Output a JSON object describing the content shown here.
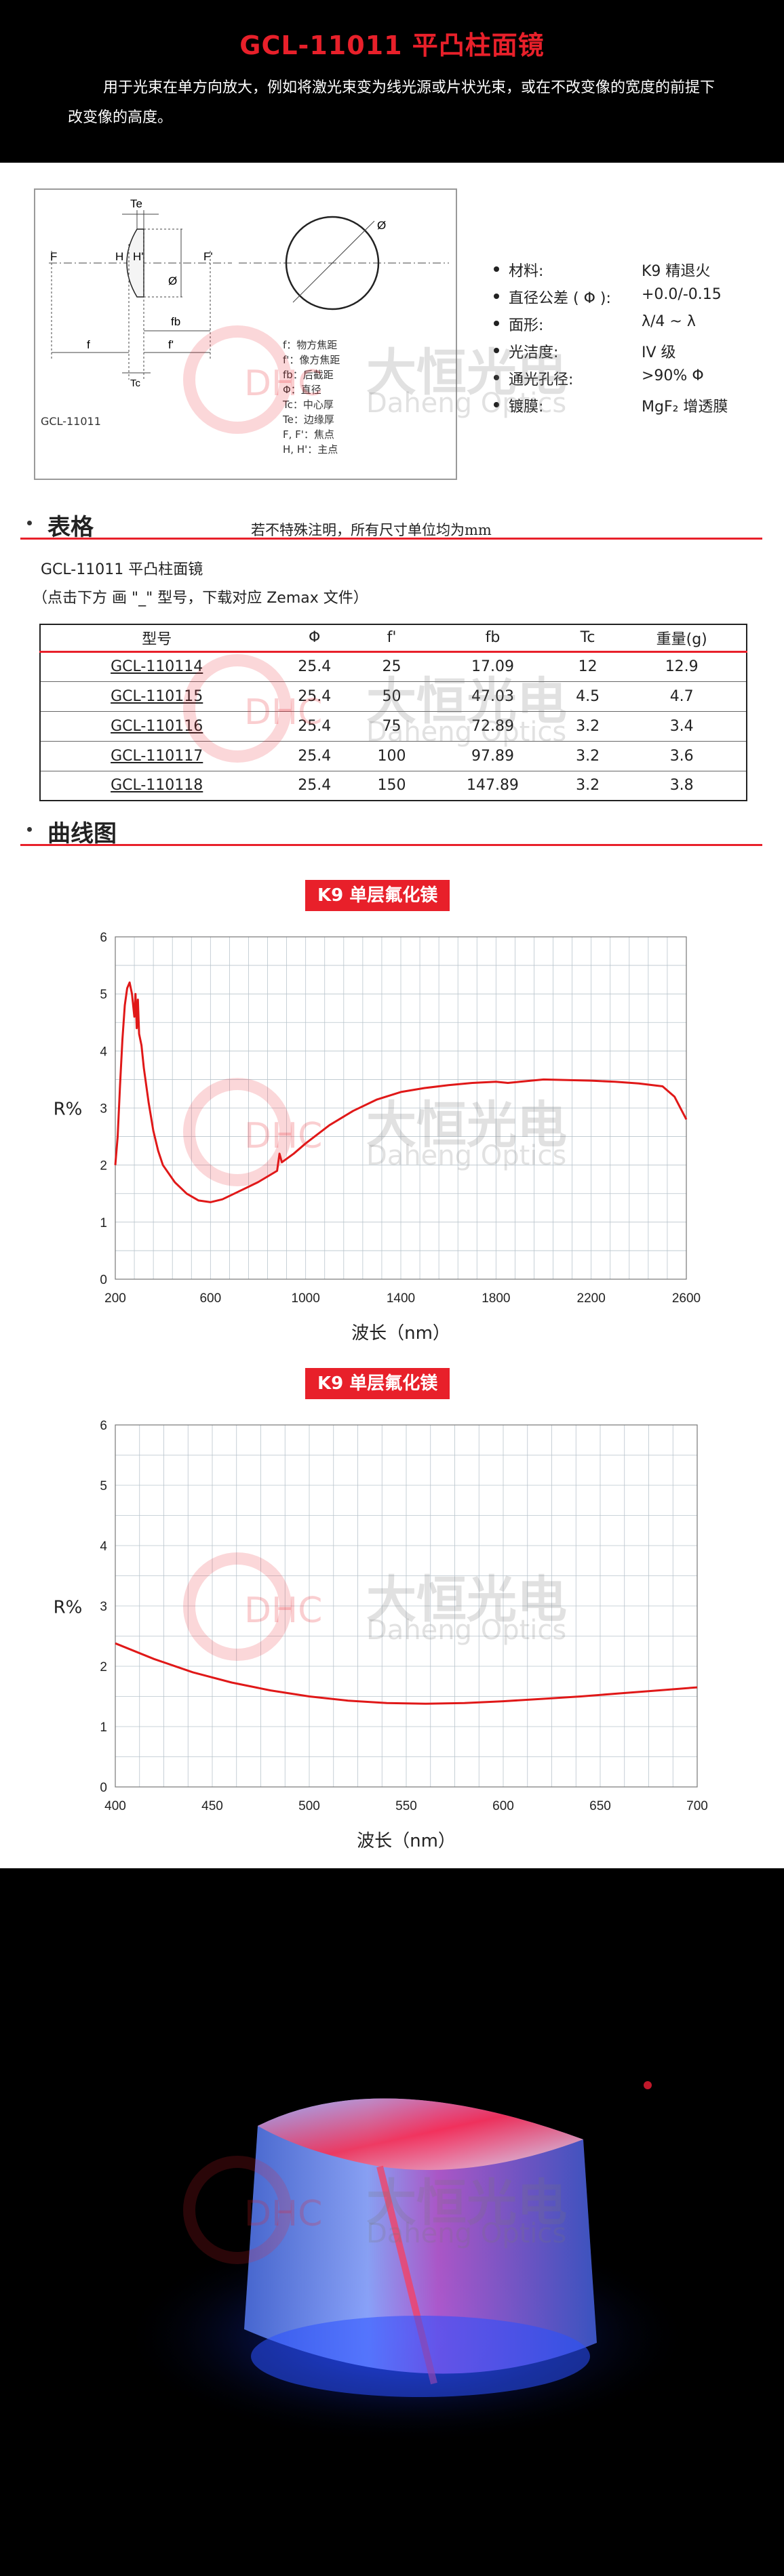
{
  "header": {
    "title": "GCL-11011 平凸柱面镜",
    "description": "用于光束在单方向放大，例如将激光束变为线光源或片状光束，或在不改变像的宽度的前提下改变像的高度。"
  },
  "diagram": {
    "caption": "GCL-11011",
    "labels": {
      "te": "Te",
      "f_left": "F",
      "h": "H",
      "h_prime": "H'",
      "f_right": "F'",
      "phi_side": "Ø",
      "phi_circle": "Ø",
      "f": "f",
      "fb": "fb",
      "f_prime": "f'",
      "tc": "Tc"
    },
    "legend": [
      "f：物方焦距",
      "f'：像方焦距",
      "fb：后截距",
      "Φ：直径",
      "Tc：中心厚",
      "Te：边缘厚",
      "F, F'：焦点",
      "H, H'：主点"
    ]
  },
  "specs": [
    {
      "key": "材料:",
      "value": "K9 精退火"
    },
    {
      "key": "直径公差 ( Φ ):",
      "value": "+0.0/-0.15"
    },
    {
      "key": "面形:",
      "value": "λ/4 ~ λ"
    },
    {
      "key": "光洁度:",
      "value": "IV 级"
    },
    {
      "key": "通光孔径:",
      "value": ">90% Φ"
    },
    {
      "key": "镀膜:",
      "value": "MgF₂ 增透膜"
    }
  ],
  "table_section": {
    "label": "表格",
    "note": "若不特殊注明，所有尺寸单位均为mm",
    "title": "GCL-11011 平凸柱面镜",
    "subtitle": "（点击下方  画 \"_\" 型号，下载对应 Zemax 文件）",
    "columns": [
      "型号",
      "Φ",
      "f'",
      "fb",
      "Tc",
      "重量(g)"
    ],
    "rows": [
      [
        "GCL-110114",
        "25.4",
        "25",
        "17.09",
        "12",
        "12.9"
      ],
      [
        "GCL-110115",
        "25.4",
        "50",
        "47.03",
        "4.5",
        "4.7"
      ],
      [
        "GCL-110116",
        "25.4",
        "75",
        "72.89",
        "3.2",
        "3.4"
      ],
      [
        "GCL-110117",
        "25.4",
        "100",
        "97.89",
        "3.2",
        "3.6"
      ],
      [
        "GCL-110118",
        "25.4",
        "150",
        "147.89",
        "3.2",
        "3.8"
      ]
    ]
  },
  "curve_section": {
    "label": "曲线图"
  },
  "watermark": {
    "logo": "DHC",
    "name_cn": "大恒光电",
    "name_en": "Daheng Optics"
  },
  "colors": {
    "accent": "#e8202a",
    "grid": "#b9c4cc",
    "curve": "#e01818"
  },
  "chart_data": [
    {
      "type": "line",
      "title": "K9 单层氟化镁",
      "xlabel": "波长（nm）",
      "ylabel": "R%",
      "xlim": [
        200,
        2600
      ],
      "ylim": [
        0,
        6
      ],
      "xticks": [
        200,
        600,
        1000,
        1400,
        1800,
        2200,
        2600
      ],
      "yticks": [
        0,
        1,
        2,
        3,
        4,
        5,
        6
      ],
      "grid": true,
      "series": [
        {
          "values": [
            [
              200,
              2.0
            ],
            [
              210,
              2.5
            ],
            [
              220,
              3.4
            ],
            [
              230,
              4.2
            ],
            [
              240,
              4.8
            ],
            [
              250,
              5.1
            ],
            [
              260,
              5.2
            ],
            [
              270,
              5.0
            ],
            [
              280,
              4.6
            ],
            [
              285,
              5.0
            ],
            [
              290,
              4.4
            ],
            [
              295,
              4.9
            ],
            [
              300,
              4.3
            ],
            [
              310,
              4.1
            ],
            [
              320,
              3.7
            ],
            [
              340,
              3.1
            ],
            [
              360,
              2.6
            ],
            [
              380,
              2.25
            ],
            [
              400,
              2.0
            ],
            [
              450,
              1.7
            ],
            [
              500,
              1.5
            ],
            [
              550,
              1.38
            ],
            [
              600,
              1.35
            ],
            [
              650,
              1.4
            ],
            [
              700,
              1.5
            ],
            [
              800,
              1.7
            ],
            [
              880,
              1.9
            ],
            [
              890,
              2.2
            ],
            [
              900,
              2.05
            ],
            [
              950,
              2.2
            ],
            [
              1000,
              2.38
            ],
            [
              1100,
              2.7
            ],
            [
              1200,
              2.95
            ],
            [
              1300,
              3.15
            ],
            [
              1400,
              3.28
            ],
            [
              1500,
              3.35
            ],
            [
              1600,
              3.4
            ],
            [
              1700,
              3.44
            ],
            [
              1800,
              3.46
            ],
            [
              1850,
              3.44
            ],
            [
              1900,
              3.46
            ],
            [
              2000,
              3.5
            ],
            [
              2100,
              3.49
            ],
            [
              2200,
              3.48
            ],
            [
              2300,
              3.46
            ],
            [
              2400,
              3.43
            ],
            [
              2500,
              3.38
            ],
            [
              2550,
              3.2
            ],
            [
              2600,
              2.8
            ]
          ]
        }
      ]
    },
    {
      "type": "line",
      "title": "K9 单层氟化镁",
      "xlabel": "波长（nm）",
      "ylabel": "R%",
      "xlim": [
        400,
        700
      ],
      "ylim": [
        0,
        6
      ],
      "xticks": [
        400,
        450,
        500,
        550,
        600,
        650,
        700
      ],
      "yticks": [
        0,
        1,
        2,
        3,
        4,
        5,
        6
      ],
      "grid": true,
      "series": [
        {
          "values": [
            [
              400,
              2.38
            ],
            [
              420,
              2.12
            ],
            [
              440,
              1.9
            ],
            [
              460,
              1.73
            ],
            [
              480,
              1.6
            ],
            [
              500,
              1.5
            ],
            [
              520,
              1.43
            ],
            [
              540,
              1.39
            ],
            [
              560,
              1.38
            ],
            [
              580,
              1.39
            ],
            [
              600,
              1.42
            ],
            [
              620,
              1.46
            ],
            [
              640,
              1.5
            ],
            [
              660,
              1.55
            ],
            [
              680,
              1.6
            ],
            [
              700,
              1.65
            ]
          ]
        }
      ]
    }
  ]
}
